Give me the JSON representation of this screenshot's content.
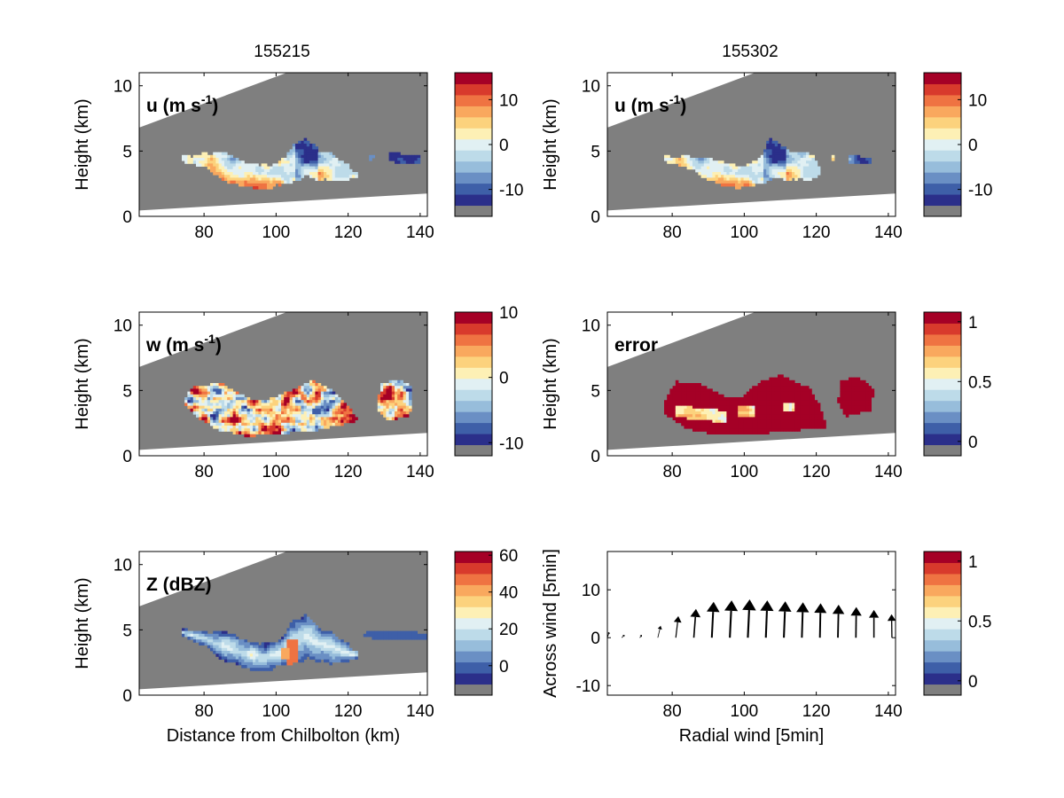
{
  "figure": {
    "col_titles": [
      "155215",
      "155302"
    ],
    "colors": {
      "gray": "#7f7f7f",
      "palette": [
        "#2b2f8a",
        "#3e5fa8",
        "#6a8fc4",
        "#97bddb",
        "#bddbe9",
        "#e1f0f3",
        "#fdf0b5",
        "#fcd27d",
        "#f9a85e",
        "#ef7342",
        "#d83a2c",
        "#a50026"
      ]
    }
  },
  "chart_data": [
    {
      "type": "heatmap",
      "panel": "u-155215",
      "label": "u (m s",
      "label_sup": "-1",
      "label_end": ")",
      "ylabel": "Height (km)",
      "xlabel": "",
      "xticks": [
        "80",
        "100",
        "120",
        "140"
      ],
      "yticks": [
        "0",
        "5",
        "10"
      ],
      "xlim": [
        62,
        142
      ],
      "ylim": [
        0,
        11
      ],
      "colorbar_ticks": [
        "10",
        "0",
        "-10"
      ],
      "colorbar_tick_values": [
        10,
        0,
        -10
      ],
      "colorbar_range": [
        -16,
        16
      ],
      "echo_profile": [
        [
          74,
          4.3,
          4.6
        ],
        [
          80,
          3.8,
          4.8
        ],
        [
          86,
          2.7,
          4.8
        ],
        [
          92,
          2.2,
          4.1
        ],
        [
          98,
          2.1,
          3.9
        ],
        [
          103,
          2.5,
          4.6
        ],
        [
          105,
          2.7,
          5.6
        ],
        [
          108,
          3.1,
          6.0
        ],
        [
          112,
          2.8,
          5.1
        ],
        [
          116,
          2.7,
          4.8
        ],
        [
          121,
          2.8,
          3.6
        ],
        [
          123,
          3.0,
          3.2
        ]
      ],
      "echo_extra": [
        [
          [
            126,
            4.3,
            4.7
          ],
          [
            127,
            4.4,
            4.6
          ]
        ],
        [
          [
            131,
            4.3,
            4.9
          ],
          [
            135,
            4.0,
            4.8
          ],
          [
            140,
            4.1,
            4.6
          ]
        ]
      ]
    },
    {
      "type": "heatmap",
      "panel": "u-155302",
      "label": "u (m s",
      "label_sup": "-1",
      "label_end": ")",
      "ylabel": "Height (km)",
      "xlabel": "",
      "xticks": [
        "80",
        "100",
        "120",
        "140"
      ],
      "yticks": [
        "0",
        "5",
        "10"
      ],
      "xlim": [
        62,
        142
      ],
      "ylim": [
        0,
        11
      ],
      "colorbar_ticks": [
        "10",
        "0",
        "-10"
      ],
      "colorbar_tick_values": [
        10,
        0,
        -10
      ],
      "colorbar_range": [
        -16,
        16
      ],
      "echo_profile": [
        [
          78,
          4.3,
          4.6
        ],
        [
          84,
          3.8,
          4.6
        ],
        [
          90,
          2.7,
          4.5
        ],
        [
          96,
          2.2,
          4.0
        ],
        [
          101,
          2.2,
          3.9
        ],
        [
          105,
          2.6,
          4.7
        ],
        [
          107,
          2.9,
          6.0
        ],
        [
          110,
          2.8,
          5.4
        ],
        [
          114,
          2.8,
          5.0
        ],
        [
          119,
          2.9,
          4.8
        ],
        [
          121,
          3.0,
          3.7
        ]
      ],
      "echo_extra": [
        [
          [
            124,
            4.3,
            4.7
          ],
          [
            125,
            4.4,
            4.6
          ]
        ],
        [
          [
            129,
            4.1,
            4.6
          ],
          [
            132,
            4.0,
            4.6
          ],
          [
            135,
            4.1,
            4.4
          ]
        ]
      ]
    },
    {
      "type": "heatmap",
      "panel": "w-155215",
      "label": "w (m s",
      "label_sup": "-1",
      "label_end": ")",
      "ylabel": "Height (km)",
      "xlabel": "",
      "xticks": [
        "80",
        "100",
        "120",
        "140"
      ],
      "yticks": [
        "0",
        "5",
        "10"
      ],
      "xlim": [
        62,
        142
      ],
      "ylim": [
        0,
        11
      ],
      "colorbar_ticks": [
        "10",
        "0",
        "-10"
      ],
      "colorbar_tick_values": [
        10,
        0,
        -10
      ],
      "colorbar_range": [
        -12,
        10
      ],
      "polygons": [
        [
          [
            74,
            4.0
          ],
          [
            77,
            5.4
          ],
          [
            85,
            5.5
          ],
          [
            92,
            4.4
          ],
          [
            97,
            4.2
          ],
          [
            104,
            5.0
          ],
          [
            110,
            5.8
          ],
          [
            116,
            5.0
          ],
          [
            120,
            3.8
          ],
          [
            123,
            2.7
          ],
          [
            110,
            1.9
          ],
          [
            92,
            1.5
          ],
          [
            84,
            2.0
          ],
          [
            78,
            3.0
          ]
        ],
        [
          [
            129,
            5.6
          ],
          [
            135,
            5.8
          ],
          [
            138,
            5.2
          ],
          [
            137,
            3.0
          ],
          [
            131,
            2.7
          ],
          [
            128,
            3.6
          ]
        ]
      ]
    },
    {
      "type": "heatmap",
      "panel": "error-155302",
      "label": "error",
      "ylabel": "Height (km)",
      "xlabel": "",
      "xticks": [
        "80",
        "100",
        "120",
        "140"
      ],
      "yticks": [
        "0",
        "5",
        "10"
      ],
      "xlim": [
        62,
        142
      ],
      "ylim": [
        0,
        11
      ],
      "colorbar_ticks": [
        "1",
        "0.5",
        "0"
      ],
      "colorbar_tick_values": [
        1,
        0.5,
        0
      ],
      "colorbar_range": [
        -0.12,
        1.08
      ],
      "polygons": [
        [
          [
            78,
            4.2
          ],
          [
            81,
            5.7
          ],
          [
            88,
            5.5
          ],
          [
            94,
            4.6
          ],
          [
            99,
            4.4
          ],
          [
            104,
            5.6
          ],
          [
            110,
            6.2
          ],
          [
            118,
            5.2
          ],
          [
            121,
            3.8
          ],
          [
            123,
            2.2
          ],
          [
            110,
            1.8
          ],
          [
            92,
            1.6
          ],
          [
            84,
            2.1
          ],
          [
            78,
            3.2
          ]
        ],
        [
          [
            127,
            5.8
          ],
          [
            132,
            6.0
          ],
          [
            136,
            5.0
          ],
          [
            135,
            3.5
          ],
          [
            128,
            3.0
          ],
          [
            126,
            4.2
          ]
        ]
      ]
    },
    {
      "type": "heatmap",
      "panel": "Z-155215",
      "label": "Z (dBZ)",
      "ylabel": "Height (km)",
      "xlabel": "Distance from Chilbolton (km)",
      "xticks": [
        "80",
        "100",
        "120",
        "140"
      ],
      "yticks": [
        "0",
        "5",
        "10"
      ],
      "xlim": [
        62,
        142
      ],
      "ylim": [
        0,
        11
      ],
      "colorbar_ticks": [
        "60",
        "40",
        "20",
        "0"
      ],
      "colorbar_tick_values": [
        60,
        40,
        20,
        0
      ],
      "colorbar_range": [
        -16,
        62
      ],
      "echo_profile": [
        [
          74,
          4.6,
          5.0
        ],
        [
          80,
          3.8,
          4.8
        ],
        [
          86,
          2.6,
          4.8
        ],
        [
          92,
          2.0,
          4.2
        ],
        [
          97,
          1.9,
          3.9
        ],
        [
          102,
          2.2,
          4.4
        ],
        [
          104,
          2.4,
          5.6
        ],
        [
          108,
          2.8,
          6.2
        ],
        [
          112,
          2.6,
          5.2
        ],
        [
          116,
          2.5,
          4.8
        ],
        [
          121,
          2.6,
          3.6
        ],
        [
          123,
          3.0,
          3.3
        ]
      ],
      "echo_extra": [
        [
          [
            124,
            4.4,
            4.8
          ],
          [
            134,
            4.3,
            4.9
          ],
          [
            140,
            4.2,
            4.8
          ],
          [
            142,
            4.3,
            4.6
          ]
        ]
      ]
    },
    {
      "type": "scatter",
      "panel": "wind-arrows",
      "ylabel": "Across wind [5min]",
      "xlabel": "Radial wind [5min]",
      "xticks": [
        "80",
        "100",
        "120",
        "140"
      ],
      "yticks": [
        "-10",
        "0",
        "10"
      ],
      "xlim": [
        62,
        142
      ],
      "ylim": [
        -12,
        18
      ],
      "colorbar_ticks": [
        "1",
        "0.5",
        "0"
      ],
      "colorbar_tick_values": [
        1,
        0.5,
        0
      ],
      "colorbar_range": [
        -0.12,
        1.08
      ],
      "arrows": [
        {
          "x": 62,
          "u": 0.5,
          "v": 1.2
        },
        {
          "x": 66,
          "u": 0.8,
          "v": 0.6
        },
        {
          "x": 71,
          "u": 0.6,
          "v": 0.6
        },
        {
          "x": 76,
          "u": 0.8,
          "v": 2.5
        },
        {
          "x": 81,
          "u": 0.7,
          "v": 4.5
        },
        {
          "x": 86,
          "u": 0.6,
          "v": 6.0
        },
        {
          "x": 91,
          "u": 0.5,
          "v": 7.5
        },
        {
          "x": 96,
          "u": 0.5,
          "v": 7.8
        },
        {
          "x": 101,
          "u": 0.5,
          "v": 8.0
        },
        {
          "x": 106,
          "u": 0.4,
          "v": 7.8
        },
        {
          "x": 111,
          "u": 0.4,
          "v": 7.6
        },
        {
          "x": 116,
          "u": 0.3,
          "v": 7.4
        },
        {
          "x": 121,
          "u": 0.2,
          "v": 7.2
        },
        {
          "x": 126,
          "u": 0.2,
          "v": 6.9
        },
        {
          "x": 131,
          "u": 0.1,
          "v": 6.4
        },
        {
          "x": 136,
          "u": 0.0,
          "v": 5.8
        },
        {
          "x": 141,
          "u": -0.1,
          "v": 4.9
        }
      ]
    }
  ]
}
